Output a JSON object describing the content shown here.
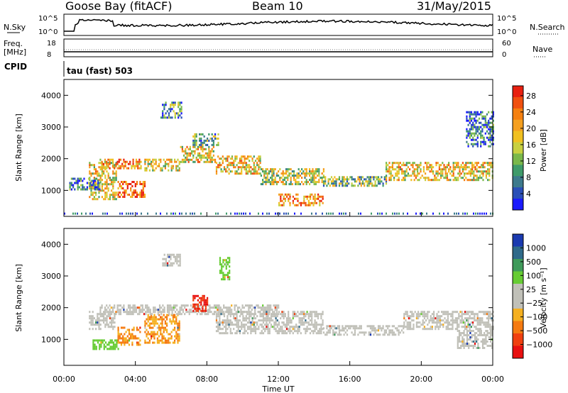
{
  "header": {
    "station": "Goose Bay (fitACF)",
    "beam": "Beam 10",
    "date": "31/May/2015"
  },
  "top_panels": {
    "nsky_label": "N.Sky",
    "nsky_ticks": [
      "10^5",
      "10^0"
    ],
    "nsearch_label": "N.Search",
    "nsearch_ticks": [
      "10^5",
      "10^0"
    ],
    "freq_label": "Freq.",
    "freq_unit": "[MHz]",
    "freq_ticks": [
      "18",
      "8"
    ],
    "nave_label": "Nave",
    "nave_ticks": [
      "60",
      "0"
    ],
    "cpid_label": "CPID",
    "cpid_value": "tau (fast) 503"
  },
  "chart_data": [
    {
      "type": "heatmap",
      "name": "power",
      "ylabel": "Slant Range [km]",
      "ylim": [
        180,
        4500
      ],
      "yticks": [
        1000,
        2000,
        3000,
        4000
      ],
      "xlim": [
        "00:00",
        "24:00"
      ],
      "colorbar": {
        "label": "Power [dB]",
        "ticks": [
          4,
          8,
          12,
          16,
          20,
          24,
          28
        ],
        "colors": [
          "#1a1aff",
          "#2a4fb8",
          "#3d7a8c",
          "#3f9b6a",
          "#7ab84a",
          "#c8d040",
          "#f0c020",
          "#f5a020",
          "#f58010",
          "#f05010",
          "#e82010"
        ]
      },
      "regions": [
        {
          "x0": 1.4,
          "x1": 2.9,
          "y0": 700,
          "y1": 1900,
          "level": 0.55
        },
        {
          "x0": 2.0,
          "x1": 4.3,
          "y0": 1700,
          "y1": 2000,
          "level": 0.7
        },
        {
          "x0": 3.0,
          "x1": 4.5,
          "y0": 800,
          "y1": 1300,
          "level": 0.85
        },
        {
          "x0": 4.5,
          "x1": 6.5,
          "y0": 1600,
          "y1": 2000,
          "level": 0.55
        },
        {
          "x0": 6.5,
          "x1": 8.5,
          "y0": 1900,
          "y1": 2400,
          "level": 0.6
        },
        {
          "x0": 7.2,
          "x1": 8.6,
          "y0": 2400,
          "y1": 2800,
          "level": 0.35
        },
        {
          "x0": 8.5,
          "x1": 11.0,
          "y0": 1500,
          "y1": 2100,
          "level": 0.6
        },
        {
          "x0": 11.0,
          "x1": 14.5,
          "y0": 1200,
          "y1": 1700,
          "level": 0.5
        },
        {
          "x0": 14.5,
          "x1": 18.0,
          "y0": 1150,
          "y1": 1450,
          "level": 0.4
        },
        {
          "x0": 18.0,
          "x1": 24.0,
          "y0": 1300,
          "y1": 1900,
          "level": 0.6
        },
        {
          "x0": 5.4,
          "x1": 6.6,
          "y0": 3300,
          "y1": 3800,
          "level": 0.3
        },
        {
          "x0": 0.3,
          "x1": 2.0,
          "y0": 1000,
          "y1": 1400,
          "level": 0.25
        },
        {
          "x0": 12.0,
          "x1": 14.5,
          "y0": 500,
          "y1": 900,
          "level": 0.75
        },
        {
          "x0": 22.5,
          "x1": 24.0,
          "y0": 2400,
          "y1": 3500,
          "level": 0.2
        }
      ]
    },
    {
      "type": "heatmap",
      "name": "velocity",
      "ylabel": "Slant Range [km]",
      "ylim": [
        180,
        4500
      ],
      "yticks": [
        1000,
        2000,
        3000,
        4000
      ],
      "xlim": [
        "00:00",
        "24:00"
      ],
      "xticks": [
        "00:00",
        "04:00",
        "08:00",
        "12:00",
        "16:00",
        "20:00",
        "00:00"
      ],
      "xlabel": "Time UT",
      "colorbar": {
        "label": "Velocity [m s⁻¹]",
        "ticks": [
          "1000",
          "500",
          "100",
          "25",
          "−25",
          "−100",
          "−500",
          "−1000"
        ],
        "colors": [
          "#1a3ab0",
          "#2f6a8a",
          "#3f9a5a",
          "#66cc33",
          "#c0c0b8",
          "#c0c0b8",
          "#f5b020",
          "#f57a10",
          "#f04010",
          "#e81010"
        ]
      },
      "regions": [
        {
          "x0": 1.4,
          "x1": 2.8,
          "y0": 1300,
          "y1": 1900,
          "cls": "grey"
        },
        {
          "x0": 1.6,
          "x1": 3.0,
          "y0": 700,
          "y1": 1000,
          "cls": "green"
        },
        {
          "x0": 3.0,
          "x1": 4.3,
          "y0": 800,
          "y1": 1400,
          "cls": "orange"
        },
        {
          "x0": 4.5,
          "x1": 6.5,
          "y0": 900,
          "y1": 1800,
          "cls": "orange"
        },
        {
          "x0": 2.0,
          "x1": 12.0,
          "y0": 1800,
          "y1": 2100,
          "cls": "grey"
        },
        {
          "x0": 7.2,
          "x1": 8.0,
          "y0": 1900,
          "y1": 2400,
          "cls": "red"
        },
        {
          "x0": 8.5,
          "x1": 14.5,
          "y0": 1200,
          "y1": 1900,
          "cls": "grey"
        },
        {
          "x0": 14.5,
          "x1": 19.0,
          "y0": 1150,
          "y1": 1450,
          "cls": "grey"
        },
        {
          "x0": 19.0,
          "x1": 24.0,
          "y0": 1300,
          "y1": 1900,
          "cls": "grey"
        },
        {
          "x0": 5.5,
          "x1": 6.5,
          "y0": 3300,
          "y1": 3700,
          "cls": "grey"
        },
        {
          "x0": 8.7,
          "x1": 9.3,
          "y0": 2900,
          "y1": 3600,
          "cls": "green"
        },
        {
          "x0": 22.0,
          "x1": 24.0,
          "y0": 700,
          "y1": 1300,
          "cls": "grey"
        }
      ]
    }
  ]
}
